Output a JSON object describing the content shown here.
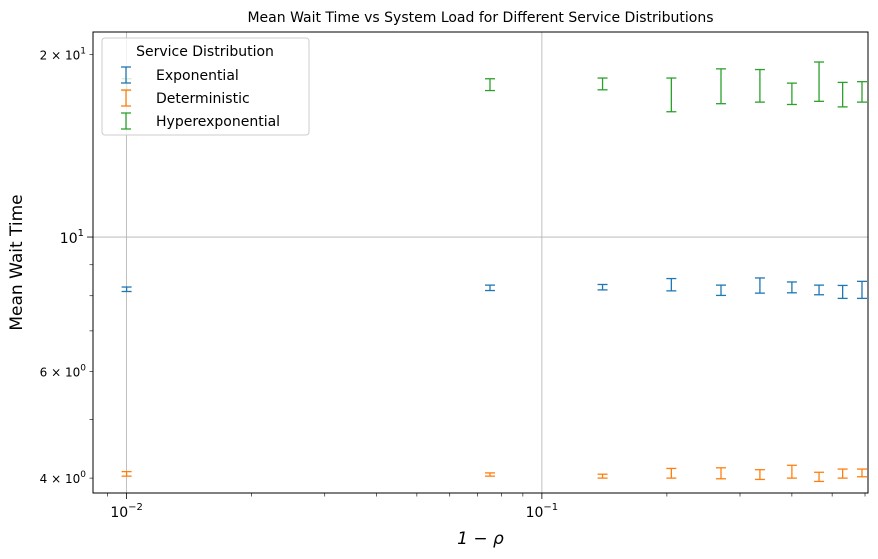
{
  "chart_data": {
    "type": "errorbar",
    "title": "Mean Wait Time vs System Load for Different Service Distributions",
    "xlabel": "1 − ρ",
    "ylabel": "Mean Wait Time",
    "xscale": "log",
    "yscale": "log",
    "xlim": [
      0.0083,
      0.61
    ],
    "ylim": [
      3.78,
      21.8
    ],
    "grid": "major",
    "x_ticks": [
      {
        "value": 0.01,
        "base": "10",
        "exp": "−2"
      },
      {
        "value": 0.1,
        "base": "10",
        "exp": "−1"
      }
    ],
    "y_ticks": [
      {
        "value": 4,
        "mantissa": "4",
        "base": "10",
        "exp": "0",
        "size": "small"
      },
      {
        "value": 6,
        "mantissa": "6",
        "base": "10",
        "exp": "0",
        "size": "small"
      },
      {
        "value": 10,
        "mantissa": "",
        "base": "10",
        "exp": "1",
        "size": "large"
      },
      {
        "value": 20,
        "mantissa": "2",
        "base": "10",
        "exp": "1",
        "size": "small"
      }
    ],
    "x": [
      0.01,
      0.075,
      0.14,
      0.205,
      0.27,
      0.335,
      0.4,
      0.465,
      0.53,
      0.59
    ],
    "legend": {
      "title": "Service Distribution",
      "placement": "top-left"
    },
    "series": [
      {
        "name": "Exponential",
        "color": "#1f77b4",
        "low": [
          8.13,
          8.16,
          8.18,
          8.15,
          8.01,
          8.08,
          8.09,
          8.03,
          7.92,
          7.92
        ],
        "high": [
          8.27,
          8.33,
          8.35,
          8.54,
          8.33,
          8.56,
          8.43,
          8.33,
          8.32,
          8.45
        ]
      },
      {
        "name": "Deterministic",
        "color": "#ff7f0e",
        "low": [
          4.03,
          4.03,
          4.0,
          4.0,
          3.99,
          3.98,
          4.0,
          3.95,
          4.0,
          4.02
        ],
        "high": [
          4.1,
          4.08,
          4.06,
          4.15,
          4.16,
          4.13,
          4.2,
          4.09,
          4.14,
          4.14
        ]
      },
      {
        "name": "Hyperexponential",
        "color": "#2ca02c",
        "low": [
          17.45,
          17.45,
          17.5,
          16.1,
          16.6,
          16.7,
          16.55,
          16.75,
          16.4,
          16.7
        ],
        "high": [
          18.25,
          18.25,
          18.3,
          18.3,
          18.95,
          18.9,
          17.95,
          19.45,
          18.0,
          18.05
        ]
      }
    ]
  }
}
